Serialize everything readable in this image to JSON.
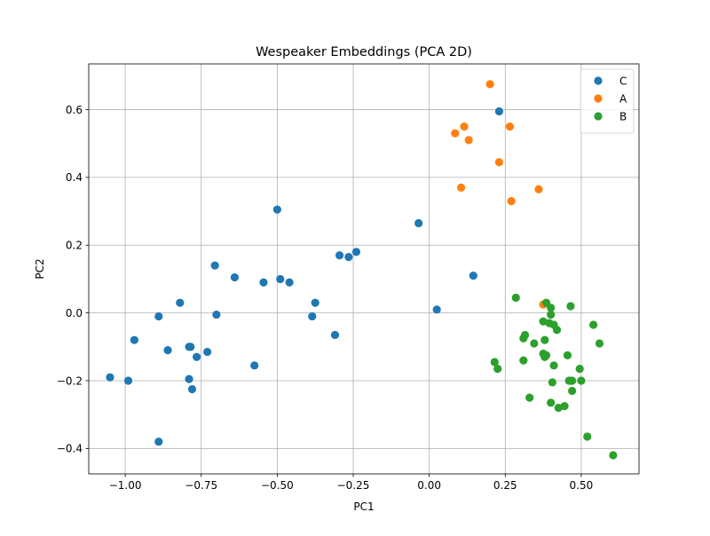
{
  "chart_data": {
    "type": "scatter",
    "title": "Wespeaker Embeddings (PCA 2D)",
    "xlabel": "PC1",
    "ylabel": "PC2",
    "xlim": [
      -1.12,
      0.69
    ],
    "ylim": [
      -0.475,
      0.735
    ],
    "xticks": [
      -1.0,
      -0.75,
      -0.5,
      -0.25,
      0.0,
      0.25,
      0.5
    ],
    "xtick_labels": [
      "−1.00",
      "−0.75",
      "−0.50",
      "−0.25",
      "0.00",
      "0.25",
      "0.50"
    ],
    "yticks": [
      -0.4,
      -0.2,
      0.0,
      0.2,
      0.4,
      0.6
    ],
    "ytick_labels": [
      "−0.4",
      "−0.2",
      "0.0",
      "0.2",
      "0.4",
      "0.6"
    ],
    "grid": true,
    "legend_position": "top-right",
    "series": [
      {
        "name": "C",
        "color": "#1f77b4",
        "points": [
          [
            -1.05,
            -0.19
          ],
          [
            -0.99,
            -0.2
          ],
          [
            -0.97,
            -0.08
          ],
          [
            -0.89,
            -0.38
          ],
          [
            -0.89,
            -0.01
          ],
          [
            -0.86,
            -0.11
          ],
          [
            -0.82,
            0.03
          ],
          [
            -0.79,
            -0.1
          ],
          [
            -0.785,
            -0.1
          ],
          [
            -0.79,
            -0.195
          ],
          [
            -0.78,
            -0.225
          ],
          [
            -0.765,
            -0.13
          ],
          [
            -0.73,
            -0.115
          ],
          [
            -0.705,
            0.14
          ],
          [
            -0.7,
            -0.005
          ],
          [
            -0.64,
            0.105
          ],
          [
            -0.575,
            -0.155
          ],
          [
            -0.545,
            0.09
          ],
          [
            -0.5,
            0.305
          ],
          [
            -0.49,
            0.1
          ],
          [
            -0.46,
            0.09
          ],
          [
            -0.385,
            -0.01
          ],
          [
            -0.375,
            0.03
          ],
          [
            -0.31,
            -0.065
          ],
          [
            -0.295,
            0.17
          ],
          [
            -0.265,
            0.165
          ],
          [
            -0.24,
            0.18
          ],
          [
            -0.035,
            0.265
          ],
          [
            0.025,
            0.01
          ],
          [
            0.145,
            0.11
          ],
          [
            0.23,
            0.595
          ]
        ]
      },
      {
        "name": "A",
        "color": "#ff7f0e",
        "points": [
          [
            0.2,
            0.675
          ],
          [
            0.115,
            0.55
          ],
          [
            0.265,
            0.55
          ],
          [
            0.085,
            0.53
          ],
          [
            0.13,
            0.51
          ],
          [
            0.23,
            0.445
          ],
          [
            0.105,
            0.37
          ],
          [
            0.36,
            0.365
          ],
          [
            0.27,
            0.33
          ],
          [
            0.375,
            0.025
          ]
        ]
      },
      {
        "name": "B",
        "color": "#2ca02c",
        "points": [
          [
            0.285,
            0.045
          ],
          [
            0.385,
            0.03
          ],
          [
            0.4,
            0.015
          ],
          [
            0.465,
            0.02
          ],
          [
            0.4,
            -0.005
          ],
          [
            0.375,
            -0.025
          ],
          [
            0.395,
            -0.03
          ],
          [
            0.41,
            -0.035
          ],
          [
            0.42,
            -0.05
          ],
          [
            0.54,
            -0.035
          ],
          [
            0.31,
            -0.075
          ],
          [
            0.315,
            -0.065
          ],
          [
            0.38,
            -0.08
          ],
          [
            0.345,
            -0.09
          ],
          [
            0.56,
            -0.09
          ],
          [
            0.375,
            -0.12
          ],
          [
            0.38,
            -0.13
          ],
          [
            0.385,
            -0.125
          ],
          [
            0.455,
            -0.125
          ],
          [
            0.31,
            -0.14
          ],
          [
            0.215,
            -0.145
          ],
          [
            0.41,
            -0.155
          ],
          [
            0.225,
            -0.165
          ],
          [
            0.46,
            -0.2
          ],
          [
            0.47,
            -0.2
          ],
          [
            0.495,
            -0.165
          ],
          [
            0.5,
            -0.2
          ],
          [
            0.405,
            -0.205
          ],
          [
            0.47,
            -0.23
          ],
          [
            0.33,
            -0.25
          ],
          [
            0.4,
            -0.265
          ],
          [
            0.425,
            -0.28
          ],
          [
            0.445,
            -0.275
          ],
          [
            0.52,
            -0.365
          ],
          [
            0.605,
            -0.42
          ]
        ]
      }
    ]
  }
}
